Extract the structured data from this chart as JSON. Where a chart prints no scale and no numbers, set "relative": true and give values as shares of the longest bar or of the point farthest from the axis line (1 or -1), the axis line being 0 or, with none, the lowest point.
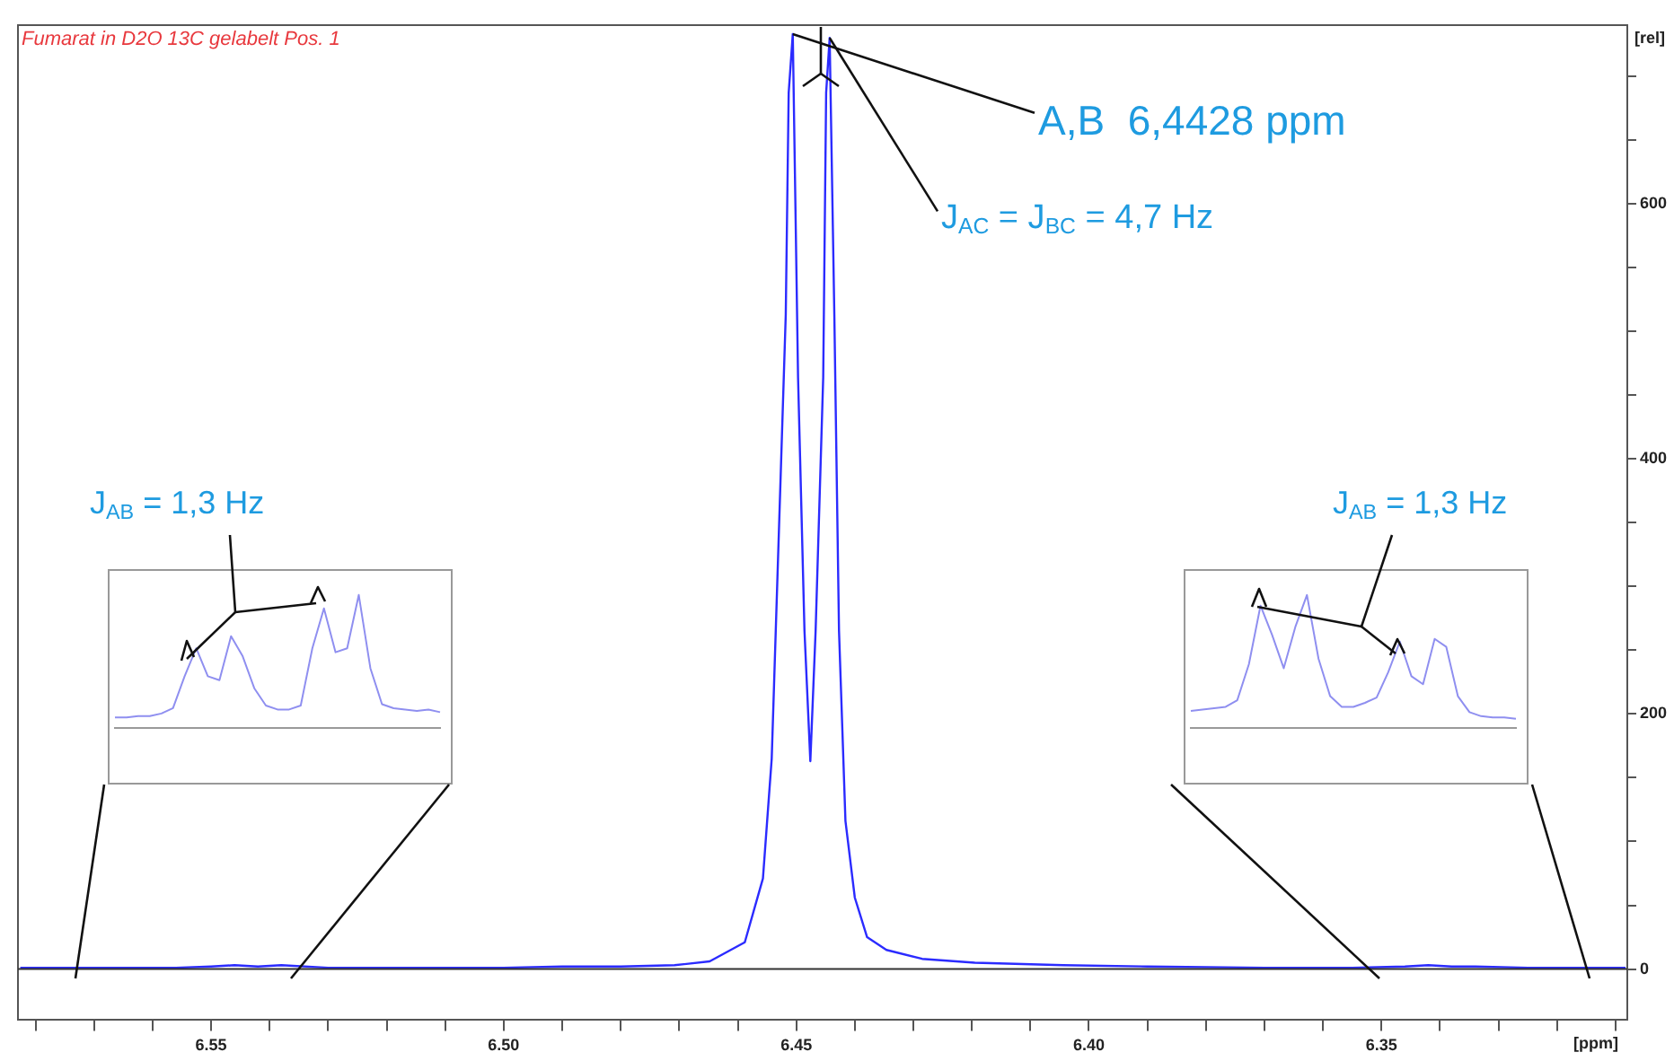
{
  "chart_data": [
    {
      "type": "line",
      "title": "Fumarat in D2O 13C gelabelt Pos. 1",
      "xlabel": "[ppm]",
      "ylabel": "[rel]",
      "color": "#2b2bff",
      "marker": "none",
      "x": [
        6.5826,
        6.575,
        6.565,
        6.556,
        6.55,
        6.546,
        6.542,
        6.538,
        6.53,
        6.515,
        6.5,
        6.49,
        6.48,
        6.4708,
        6.4648,
        6.4588,
        6.4557,
        6.4542,
        6.4518,
        6.4513,
        6.4506,
        6.4497,
        6.4486,
        6.4476,
        6.4467,
        6.4454,
        6.4449,
        6.4443,
        6.4435,
        6.4427,
        6.4416,
        6.44,
        6.4379,
        6.4346,
        6.4285,
        6.4195,
        6.4044,
        6.39,
        6.37,
        6.355,
        6.346,
        6.342,
        6.338,
        6.334,
        6.325,
        6.315,
        6.3083
      ],
      "values": [
        1,
        1,
        1,
        1,
        2,
        3,
        2,
        3,
        1,
        1,
        1,
        2,
        2,
        3,
        6,
        21,
        71,
        165,
        513,
        687,
        733,
        464,
        265,
        163,
        265,
        464,
        687,
        730,
        513,
        265,
        116,
        56,
        25,
        15,
        8,
        5,
        3,
        2,
        1,
        1,
        2,
        3,
        2,
        2,
        1,
        1,
        1
      ],
      "xlim": [
        6.583,
        6.308
      ],
      "ylim": [
        -40,
        740
      ],
      "xticks": [
        {
          "value": 6.58,
          "label": null
        },
        {
          "value": 6.57,
          "label": null
        },
        {
          "value": 6.56,
          "label": null
        },
        {
          "value": 6.55,
          "label": "6.55"
        },
        {
          "value": 6.54,
          "label": null
        },
        {
          "value": 6.53,
          "label": null
        },
        {
          "value": 6.52,
          "label": null
        },
        {
          "value": 6.51,
          "label": null
        },
        {
          "value": 6.5,
          "label": "6.50"
        },
        {
          "value": 6.49,
          "label": null
        },
        {
          "value": 6.48,
          "label": null
        },
        {
          "value": 6.47,
          "label": null
        },
        {
          "value": 6.46,
          "label": null
        },
        {
          "value": 6.45,
          "label": "6.45"
        },
        {
          "value": 6.44,
          "label": null
        },
        {
          "value": 6.43,
          "label": null
        },
        {
          "value": 6.42,
          "label": null
        },
        {
          "value": 6.41,
          "label": null
        },
        {
          "value": 6.4,
          "label": "6.40"
        },
        {
          "value": 6.39,
          "label": null
        },
        {
          "value": 6.38,
          "label": null
        },
        {
          "value": 6.37,
          "label": null
        },
        {
          "value": 6.36,
          "label": null
        },
        {
          "value": 6.35,
          "label": "6.35"
        },
        {
          "value": 6.34,
          "label": null
        },
        {
          "value": 6.33,
          "label": null
        },
        {
          "value": 6.32,
          "label": null
        },
        {
          "value": 6.31,
          "label": null
        }
      ],
      "yticks": [
        0,
        {
          "value": 50,
          "label": null
        },
        {
          "value": 100,
          "label": null
        },
        {
          "value": 150,
          "label": null
        },
        200,
        {
          "value": 250,
          "label": null
        },
        {
          "value": 300,
          "label": null
        },
        {
          "value": 350,
          "label": null
        },
        400,
        {
          "value": 450,
          "label": null
        },
        {
          "value": 500,
          "label": null
        },
        {
          "value": 550,
          "label": null
        },
        600,
        {
          "value": 650,
          "label": null
        },
        {
          "value": 700,
          "label": null
        }
      ],
      "annotations": [
        {
          "text": "A,B  6,4428 ppm",
          "x": 6.4506,
          "y": 733
        },
        {
          "text": "J$_{AC}$ = J$_{BC}$ = 4,7 Hz",
          "x": 6.4443,
          "y": 730
        },
        "J$_{AB}$ = 1,3 Hz",
        "J$_{AB}$ = 1,3 Hz"
      ]
    },
    {
      "type": "line",
      "relative": true,
      "color": "#8f8ff0",
      "marker": "none",
      "categories": [
        null,
        null,
        null,
        null,
        null,
        null,
        null,
        null,
        null,
        null,
        null,
        null,
        null,
        null,
        null,
        null,
        null,
        null,
        null,
        null,
        null,
        null,
        null,
        null,
        null,
        null,
        null,
        null,
        null
      ],
      "values": [
        0.08,
        0.08,
        0.09,
        0.09,
        0.11,
        0.15,
        0.39,
        0.6,
        0.39,
        0.36,
        0.69,
        0.54,
        0.3,
        0.17,
        0.14,
        0.14,
        0.17,
        0.6,
        0.9,
        0.57,
        0.6,
        1,
        0.45,
        0.18,
        0.15,
        0.14,
        0.13,
        0.14,
        0.12
      ]
    },
    {
      "type": "line",
      "relative": true,
      "color": "#8f8ff0",
      "marker": "none",
      "categories": [
        null,
        null,
        null,
        null,
        null,
        null,
        null,
        null,
        null,
        null,
        null,
        null,
        null,
        null,
        null,
        null,
        null,
        null,
        null,
        null,
        null,
        null,
        null,
        null,
        null,
        null,
        null,
        null,
        null
      ],
      "values": [
        0.13,
        0.14,
        0.15,
        0.16,
        0.21,
        0.48,
        0.92,
        0.7,
        0.45,
        0.76,
        1,
        0.52,
        0.24,
        0.16,
        0.16,
        0.19,
        0.23,
        0.42,
        0.65,
        0.39,
        0.33,
        0.67,
        0.61,
        0.24,
        0.12,
        0.09,
        0.08,
        0.08,
        0.07
      ]
    }
  ]
}
